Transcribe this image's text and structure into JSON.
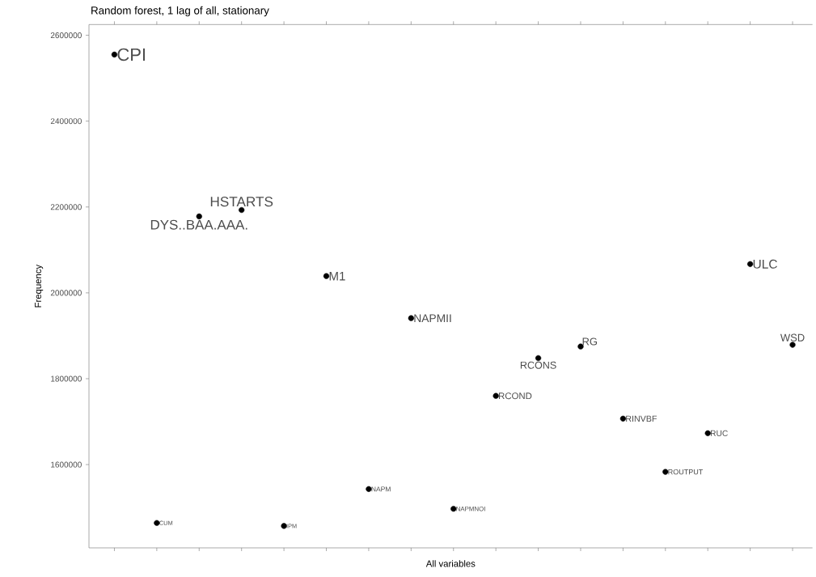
{
  "chart_data": {
    "type": "scatter",
    "title": "Random forest, 1 lag of all, stationary",
    "xlabel": "All variables",
    "ylabel": "Frequency",
    "categories": [
      null,
      null,
      null,
      null,
      null,
      null,
      null,
      null,
      null,
      null,
      null,
      null,
      null,
      null,
      null,
      null,
      null
    ],
    "values": [
      2555000,
      1464000,
      2178000,
      2193000,
      1457000,
      2039000,
      1543000,
      1941000,
      1497000,
      1760000,
      1848000,
      1875000,
      1707000,
      1583000,
      1673000,
      2067000,
      1879000
    ],
    "value_labels": [
      "CPI",
      "CUM",
      "DYS..BAA.AAA.",
      "HSTARTS",
      "IPM",
      "M1",
      "NAPM",
      "NAPMII",
      "NAPMNOI",
      "RCOND",
      "RCONS",
      "RG",
      "RINVBF",
      "ROUTPUT",
      "RUC",
      "ULC",
      "WSD"
    ],
    "color": "#000000",
    "grid": false,
    "tick_labels": "y",
    "ylim": [
      1406000,
      2625000
    ],
    "yticks": [
      1600000,
      1800000,
      2000000,
      2200000,
      2400000,
      2600000
    ]
  }
}
